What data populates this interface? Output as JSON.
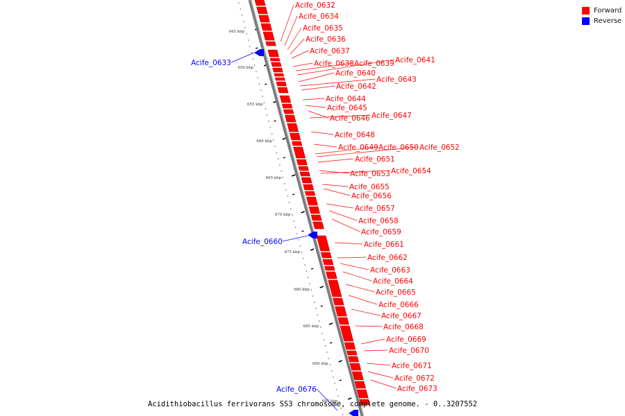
{
  "legend": {
    "forward": {
      "label": "Forward",
      "color": "#ff0000"
    },
    "reverse": {
      "label": "Reverse",
      "color": "#0000ff"
    }
  },
  "caption": "Acidithiobacillus ferrivorans SS3 chromosome, complete genome. - 0..3207552",
  "scale": {
    "unit": "kbp",
    "ticks": [
      "645 kbp",
      "650 kbp",
      "655 kbp",
      "660 kbp",
      "665 kbp",
      "670 kbp",
      "675 kbp",
      "680 kbp",
      "685 kbp",
      "690 kbp",
      "695 kbp"
    ]
  },
  "forward_genes": [
    {
      "label": "Acife_0632"
    },
    {
      "label": "Acife_0634"
    },
    {
      "label": "Acife_0635"
    },
    {
      "label": "Acife_0636"
    },
    {
      "label": "Acife_0637"
    },
    {
      "label": "Acife_0638"
    },
    {
      "label": "Acife_0639"
    },
    {
      "label": "Acife_0641"
    },
    {
      "label": "Acife_0640"
    },
    {
      "label": "Acife_0643"
    },
    {
      "label": "Acife_0642"
    },
    {
      "label": "Acife_0644"
    },
    {
      "label": "Acife_0645"
    },
    {
      "label": "Acife_0646"
    },
    {
      "label": "Acife_0647"
    },
    {
      "label": "Acife_0648"
    },
    {
      "label": "Acife_0649"
    },
    {
      "label": "Acife_0650"
    },
    {
      "label": "Acife_0652"
    },
    {
      "label": "Acife_0651"
    },
    {
      "label": "Acife_0653"
    },
    {
      "label": "Acife_0654"
    },
    {
      "label": "Acife_0655"
    },
    {
      "label": "Acife_0656"
    },
    {
      "label": "Acife_0657"
    },
    {
      "label": "Acife_0658"
    },
    {
      "label": "Acife_0659"
    },
    {
      "label": "Acife_0661"
    },
    {
      "label": "Acife_0662"
    },
    {
      "label": "Acife_0663"
    },
    {
      "label": "Acife_0664"
    },
    {
      "label": "Acife_0665"
    },
    {
      "label": "Acife_0666"
    },
    {
      "label": "Acife_0667"
    },
    {
      "label": "Acife_0668"
    },
    {
      "label": "Acife_0669"
    },
    {
      "label": "Acife_0670"
    },
    {
      "label": "Acife_0671"
    },
    {
      "label": "Acife_0672"
    },
    {
      "label": "Acife_0673"
    }
  ],
  "reverse_genes": [
    {
      "label": "Acife_0633"
    },
    {
      "label": "Acife_0660"
    },
    {
      "label": "Acife_0676"
    }
  ]
}
